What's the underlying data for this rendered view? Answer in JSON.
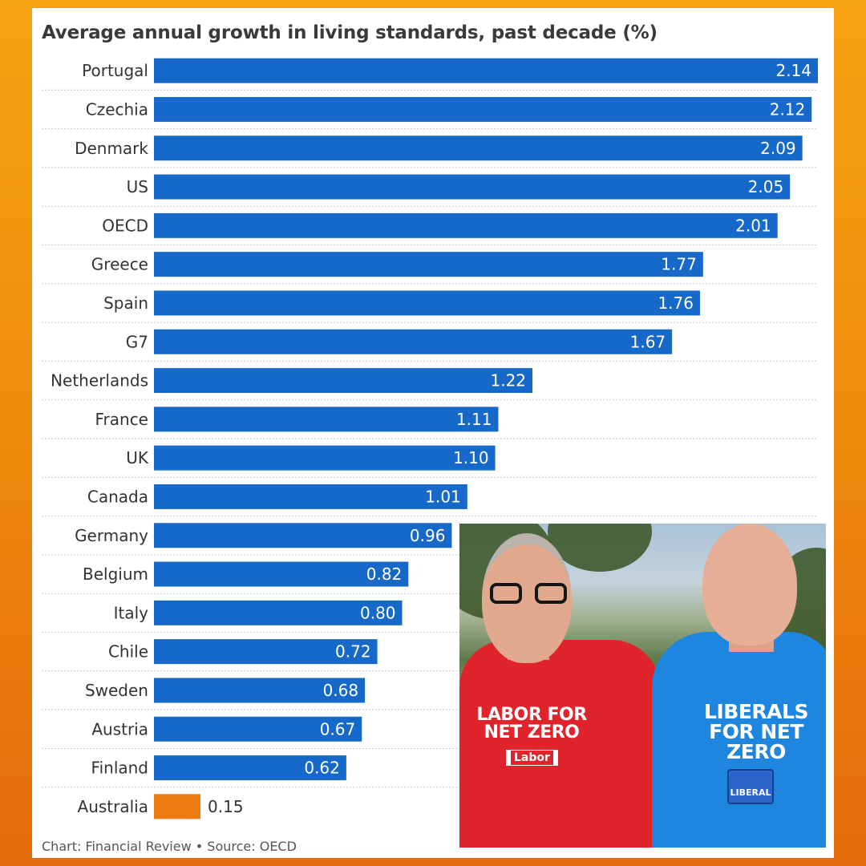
{
  "colors": {
    "bar": "#1769c9",
    "highlight": "#ec7a10",
    "label_on_bar": "#ffffff",
    "label_outside": "#333333",
    "frame_top": "#f6a310",
    "frame_bottom": "#e46b0b"
  },
  "chart_data": {
    "type": "bar",
    "orientation": "horizontal",
    "title": "Average annual growth in living standards, past decade (%)",
    "categories": [
      "Portugal",
      "Czechia",
      "Denmark",
      "US",
      "OECD",
      "Greece",
      "Spain",
      "G7",
      "Netherlands",
      "France",
      "UK",
      "Canada",
      "Germany",
      "Belgium",
      "Italy",
      "Chile",
      "Sweden",
      "Austria",
      "Finland",
      "Australia"
    ],
    "values": [
      2.14,
      2.12,
      2.09,
      2.05,
      2.01,
      1.77,
      1.76,
      1.67,
      1.22,
      1.11,
      1.1,
      1.01,
      0.96,
      0.82,
      0.8,
      0.72,
      0.68,
      0.67,
      0.62,
      0.15
    ],
    "value_labels": [
      "2.14",
      "2.12",
      "2.09",
      "2.05",
      "2.01",
      "1.77",
      "1.76",
      "1.67",
      "1.22",
      "1.11",
      "1.10",
      "1.01",
      "0.96",
      "0.82",
      "0.80",
      "0.72",
      "0.68",
      "0.67",
      "0.62",
      "0.15"
    ],
    "highlight_category": "Australia",
    "xlim": [
      0,
      2.14
    ],
    "xlabel": "",
    "ylabel": "",
    "grid": false,
    "source": "Chart: Financial Review • Source: OECD"
  },
  "photo": {
    "shirt_left_text": "LABOR FOR NET ZERO",
    "shirt_left_logo": "Labor",
    "shirt_right_text": "LIBERALS FOR NET ZERO",
    "shirt_right_logo": "LIBERAL"
  }
}
